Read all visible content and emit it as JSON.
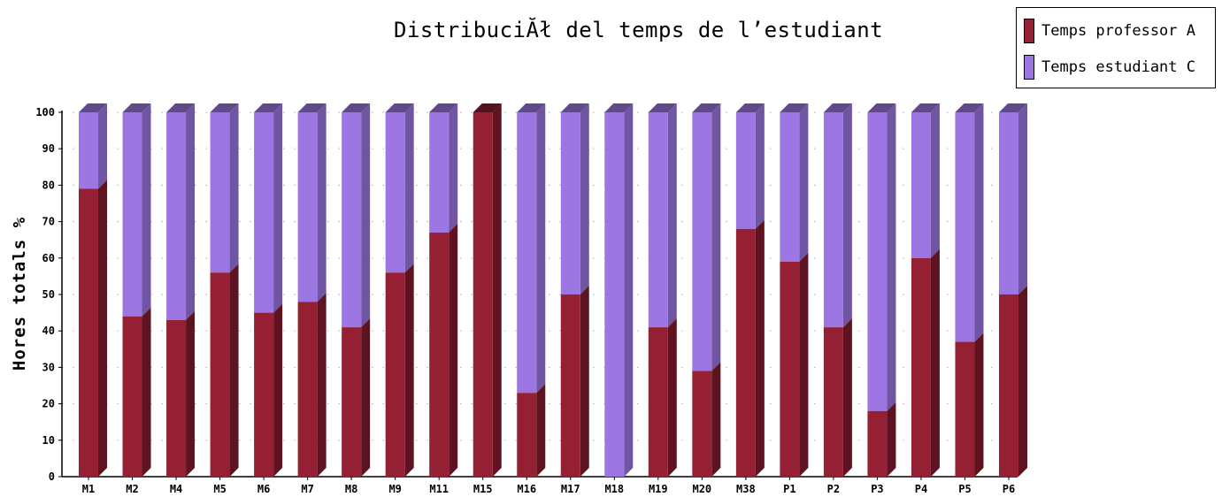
{
  "chart_data": {
    "type": "bar",
    "stacked": true,
    "style": "3d",
    "title": "DistribuciĂł del temps de l’estudiant",
    "xlabel": "",
    "ylabel": "Hores totals %",
    "ylim": [
      0,
      100
    ],
    "yticks": [
      0,
      10,
      20,
      30,
      40,
      50,
      60,
      70,
      80,
      90,
      100
    ],
    "grid": true,
    "legend_position": "top-right",
    "categories": [
      "M1",
      "M2",
      "M4",
      "M5",
      "M6",
      "M7",
      "M8",
      "M9",
      "M11",
      "M15",
      "M16",
      "M17",
      "M18",
      "M19",
      "M20",
      "M38",
      "P1",
      "P2",
      "P3",
      "P4",
      "P5",
      "P6"
    ],
    "series": [
      {
        "name": "Temps professor A",
        "color": "#962033",
        "values": [
          79,
          44,
          43,
          56,
          45,
          48,
          41,
          56,
          67,
          100,
          23,
          50,
          0,
          41,
          29,
          68,
          59,
          41,
          18,
          60,
          37,
          50
        ]
      },
      {
        "name": "Temps estudiant C",
        "color": "#9c76e2",
        "values": [
          21,
          56,
          57,
          44,
          55,
          52,
          59,
          44,
          33,
          0,
          77,
          50,
          100,
          59,
          71,
          32,
          41,
          59,
          82,
          40,
          63,
          50
        ]
      }
    ]
  }
}
